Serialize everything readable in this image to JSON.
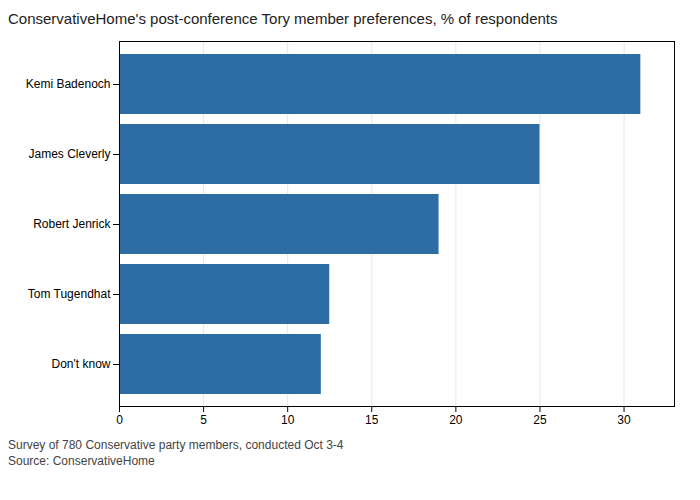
{
  "chart_data": {
    "type": "bar",
    "title": "ConservativeHome's post-conference Tory member preferences, % of respondents",
    "categories": [
      "Don't know",
      "Tom Tugendhat",
      "Robert Jenrick",
      "James Cleverly",
      "Kemi Badenoch"
    ],
    "values": [
      12,
      12.5,
      19,
      25,
      31
    ],
    "color": "#2e6da4",
    "orientation": "horizontal",
    "xlim": [
      0,
      33
    ],
    "xticks": [
      0,
      5,
      10,
      15,
      20,
      25,
      30
    ],
    "grid": true,
    "footnotes": [
      "Survey of 780 Conservative party members, conducted Oct 3-4",
      "Source: ConservativeHome"
    ]
  }
}
